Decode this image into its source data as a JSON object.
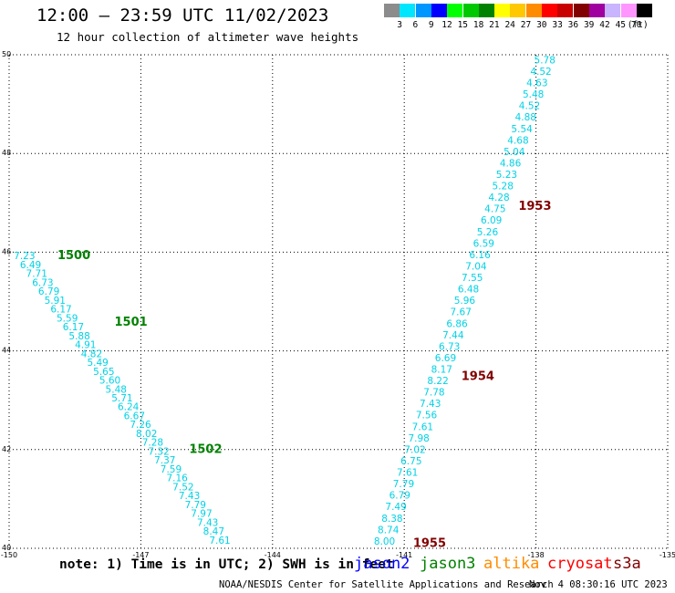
{
  "header": {
    "title": "12:00 – 23:59 UTC 11/02/2023",
    "subtitle": "12 hour collection of altimeter wave heights"
  },
  "legend": {
    "unit": "(ft)",
    "items": [
      {
        "label": "3",
        "color": "#8c8c8c"
      },
      {
        "label": "6",
        "color": "#00e6ff"
      },
      {
        "label": "9",
        "color": "#0096ff"
      },
      {
        "label": "12",
        "color": "#0000ff"
      },
      {
        "label": "15",
        "color": "#00ff00"
      },
      {
        "label": "18",
        "color": "#00c800"
      },
      {
        "label": "21",
        "color": "#008200"
      },
      {
        "label": "24",
        "color": "#ffff00"
      },
      {
        "label": "27",
        "color": "#ffc800"
      },
      {
        "label": "30",
        "color": "#ff8c00"
      },
      {
        "label": "33",
        "color": "#ff0000"
      },
      {
        "label": "36",
        "color": "#c80000"
      },
      {
        "label": "39",
        "color": "#820000"
      },
      {
        "label": "42",
        "color": "#a000a0"
      },
      {
        "label": "45",
        "color": "#c8b4ff"
      },
      {
        "label": "70",
        "color": "#ff96ff"
      },
      {
        "label": "",
        "color": "#000000"
      }
    ]
  },
  "chart_data": {
    "type": "scatter",
    "title": "12:00 – 23:59 UTC 11/02/2023",
    "xlim": [
      -150,
      -135
    ],
    "ylim": [
      40,
      50
    ],
    "grid": true,
    "x_ticks": [
      "-150",
      "-147",
      "-144",
      "-141",
      "-138",
      "-135"
    ],
    "y_ticks": [
      "40",
      "42",
      "44",
      "46",
      "48",
      "50"
    ],
    "value_color": "#00d2e6",
    "series": [
      {
        "start": [
          -149.65,
          45.93
        ],
        "end": [
          -145.2,
          40.17
        ],
        "labels": [
          "7.23",
          "6.49",
          "7.71",
          "6.73",
          "6.79",
          "5.91",
          "6.17",
          "5.59",
          "6.17",
          "5.88",
          "4.91",
          "4.82",
          "5.49",
          "5.65",
          "5.60",
          "5.48",
          "5.71",
          "6.24",
          "6.67",
          "7.26",
          "8.02",
          "7.28",
          "7.32",
          "7.37",
          "7.59",
          "7.16",
          "7.52",
          "7.43",
          "7.79",
          "7.97",
          "7.43",
          "8.47",
          "7.61"
        ],
        "times": [
          {
            "label": "1500",
            "x": -148.9,
            "y": 45.95,
            "color": "#008200"
          },
          {
            "label": "1501",
            "x": -147.6,
            "y": 44.6,
            "color": "#008200"
          },
          {
            "label": "1502",
            "x": -145.9,
            "y": 42.02,
            "color": "#008200"
          }
        ]
      },
      {
        "start": [
          -137.8,
          49.9
        ],
        "end": [
          -141.45,
          40.15
        ],
        "labels": [
          "5.78",
          "4.52",
          "4.63",
          "5.48",
          "4.52",
          "4.88",
          "5.54",
          "4.68",
          "5.04",
          "4.86",
          "5.23",
          "5.28",
          "4.28",
          "4.75",
          "6.09",
          "5.26",
          "6.59",
          "6.16",
          "7.04",
          "7.55",
          "6.48",
          "5.96",
          "7.67",
          "6.86",
          "7.44",
          "6.73",
          "6.69",
          "8.17",
          "8.22",
          "7.78",
          "7.43",
          "7.56",
          "7.61",
          "7.98",
          "7.02",
          "6.75",
          "7.61",
          "7.79",
          "6.79",
          "7.49",
          "8.38",
          "8.74",
          "8.00"
        ],
        "times": [
          {
            "label": "1953",
            "x": -138.4,
            "y": 46.95,
            "color": "#820000"
          },
          {
            "label": "1954",
            "x": -139.7,
            "y": 43.5,
            "color": "#820000"
          },
          {
            "label": "1955",
            "x": -140.8,
            "y": 40.12,
            "color": "#820000"
          }
        ]
      }
    ]
  },
  "footer": {
    "note": "note: 1) Time is in UTC; 2) SWH is in feet",
    "satellites": [
      {
        "name": "jason2",
        "color": "#0000ff"
      },
      {
        "name": "jason3",
        "color": "#008200"
      },
      {
        "name": "altika",
        "color": "#ff8c00"
      },
      {
        "name": "cryosat",
        "color": "#ff0000"
      },
      {
        "name": "s3a",
        "color": "#820000"
      }
    ],
    "credit": "NOAA/NESDIS Center for Satellite Applications and Research",
    "timestamp": "Nov  4 08:30:16 UTC 2023"
  }
}
